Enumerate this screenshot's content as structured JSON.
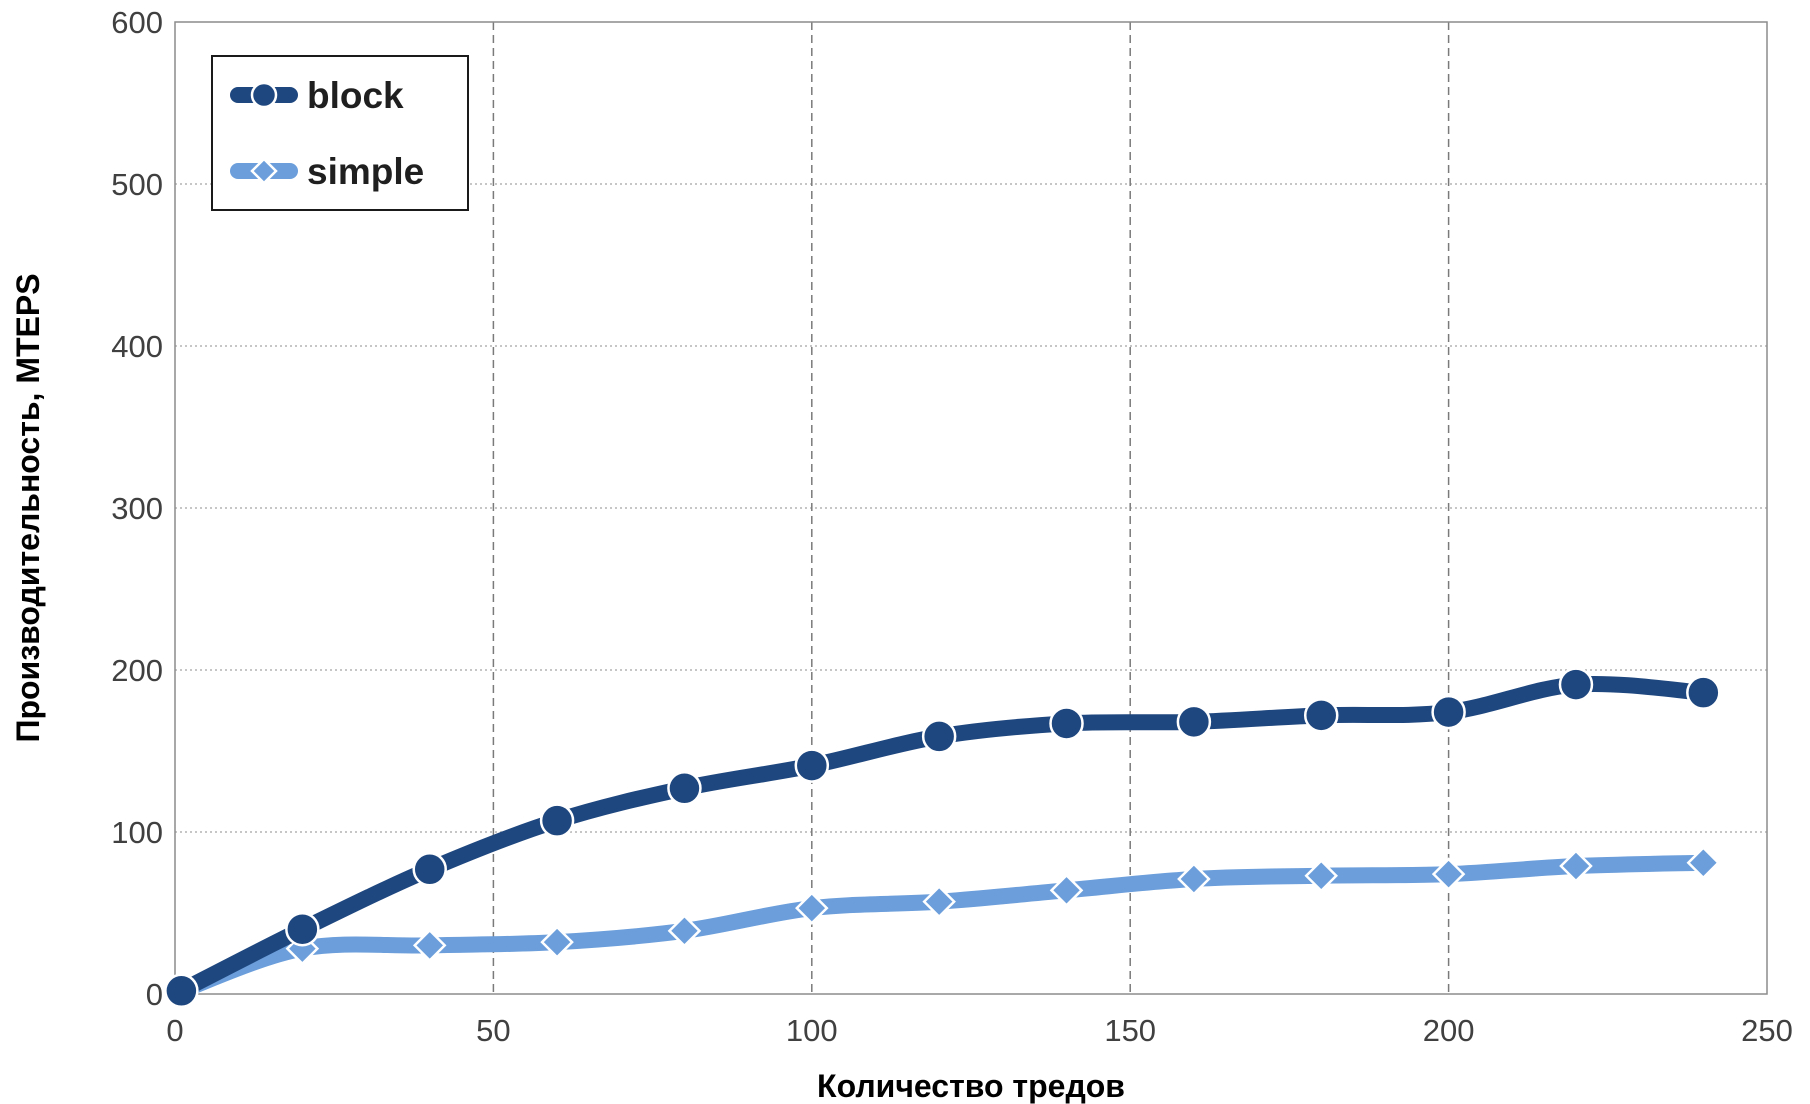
{
  "chart_data": {
    "type": "line",
    "xlabel": "Количество тредов",
    "ylabel": "Производительность, MTEPS",
    "xlim": [
      0,
      250
    ],
    "ylim": [
      0,
      600
    ],
    "x_ticks": [
      "0",
      "50",
      "100",
      "150",
      "200",
      "250"
    ],
    "y_ticks": [
      "0",
      "100",
      "200",
      "300",
      "400",
      "500",
      "600"
    ],
    "grid": {
      "x": "dashed",
      "y": "dotted"
    },
    "legend_position": "top-left",
    "x": [
      1,
      20,
      40,
      60,
      80,
      100,
      120,
      140,
      160,
      180,
      200,
      220,
      240
    ],
    "series": [
      {
        "name": "block",
        "color": "#1f477f",
        "marker": "circle",
        "values": [
          2,
          40,
          77,
          107,
          127,
          141,
          159,
          167,
          168,
          172,
          174,
          191,
          186
        ]
      },
      {
        "name": "simple",
        "color": "#6b9edb",
        "marker": "diamond",
        "values": [
          2,
          28,
          30,
          32,
          39,
          53,
          57,
          64,
          71,
          73,
          74,
          79,
          81
        ]
      }
    ]
  }
}
